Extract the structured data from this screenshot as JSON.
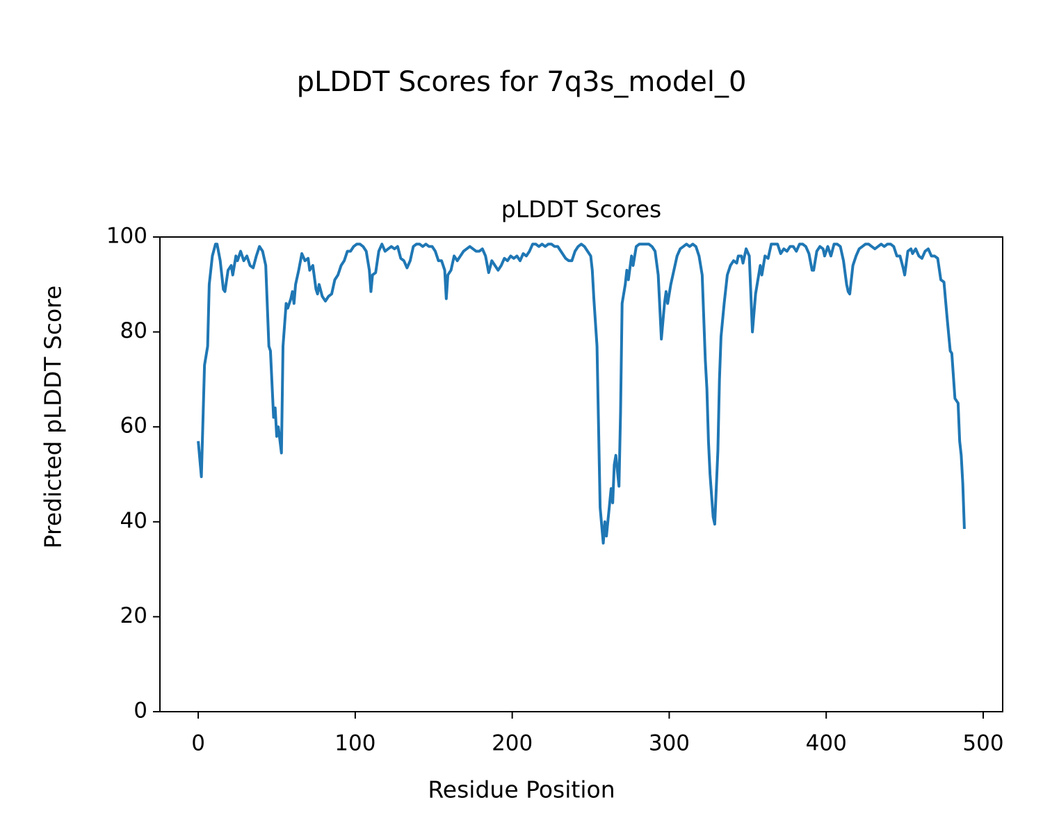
{
  "chart_data": {
    "type": "line",
    "suptitle": "pLDDT Scores for 7q3s_model_0",
    "title": "pLDDT Scores",
    "xlabel": "Residue Position",
    "ylabel": "Predicted pLDDT Score",
    "color": "#1f77b4",
    "xlim": [
      -24.4,
      512.4
    ],
    "ylim": [
      0,
      100
    ],
    "xticks": [
      0,
      100,
      200,
      300,
      400,
      500
    ],
    "yticks": [
      0,
      20,
      40,
      60,
      80,
      100
    ],
    "x": [
      0,
      2,
      4,
      6,
      7,
      9,
      11,
      12,
      14,
      16,
      17,
      19,
      21,
      22,
      24,
      25,
      27,
      29,
      31,
      33,
      35,
      37,
      39,
      41,
      43,
      45,
      46,
      48,
      49,
      50,
      51,
      53,
      54,
      56,
      57,
      59,
      60,
      61,
      62,
      64,
      66,
      68,
      70,
      71,
      73,
      75,
      76,
      77,
      79,
      81,
      83,
      85,
      87,
      89,
      91,
      93,
      95,
      97,
      99,
      101,
      103,
      105,
      107,
      109,
      110,
      111,
      113,
      115,
      117,
      119,
      121,
      123,
      125,
      127,
      129,
      131,
      133,
      135,
      137,
      139,
      141,
      143,
      145,
      147,
      149,
      151,
      153,
      155,
      157,
      158,
      159,
      161,
      163,
      165,
      167,
      169,
      171,
      173,
      175,
      177,
      179,
      181,
      183,
      185,
      187,
      189,
      191,
      193,
      195,
      197,
      199,
      201,
      203,
      205,
      207,
      209,
      211,
      213,
      215,
      217,
      219,
      221,
      223,
      225,
      227,
      229,
      231,
      234,
      236,
      238,
      240,
      242,
      244,
      246,
      248,
      250,
      251,
      252,
      254,
      256,
      258,
      259,
      260,
      263,
      264,
      265,
      266,
      268,
      269,
      270,
      272,
      273,
      274,
      276,
      277,
      279,
      281,
      283,
      285,
      287,
      289,
      291,
      293,
      295,
      297,
      298,
      299,
      301,
      303,
      305,
      307,
      309,
      311,
      313,
      315,
      317,
      319,
      321,
      323,
      324,
      325,
      326,
      328,
      329,
      331,
      332,
      333,
      335,
      337,
      339,
      341,
      343,
      344,
      346,
      347,
      349,
      351,
      353,
      355,
      357,
      358,
      359,
      361,
      363,
      365,
      367,
      369,
      371,
      373,
      375,
      377,
      379,
      381,
      383,
      385,
      387,
      389,
      391,
      392,
      394,
      396,
      398,
      399,
      401,
      403,
      405,
      407,
      409,
      411,
      413,
      414,
      415,
      417,
      419,
      421,
      423,
      425,
      427,
      429,
      431,
      433,
      435,
      437,
      439,
      441,
      443,
      445,
      447,
      449,
      450,
      452,
      454,
      455,
      457,
      459,
      461,
      463,
      465,
      467,
      469,
      471,
      473,
      475,
      477,
      479,
      480,
      482,
      484,
      485,
      486,
      487,
      488
    ],
    "values": [
      57,
      49.5,
      73,
      77,
      90,
      96,
      98.5,
      98.5,
      95,
      89,
      88.5,
      93,
      94,
      92,
      96,
      95,
      97,
      95,
      96,
      94,
      93.5,
      96,
      98,
      97,
      94,
      77,
      76,
      62,
      64,
      58,
      60,
      54.5,
      77,
      86,
      85,
      87,
      88.5,
      86,
      90,
      93,
      96.5,
      95,
      95.5,
      93,
      94,
      89,
      88,
      90,
      87.5,
      86.5,
      87.5,
      88,
      91,
      92,
      94,
      95,
      97,
      97,
      98,
      98.5,
      98.5,
      98,
      97,
      93,
      88.5,
      92,
      92.5,
      97,
      98.5,
      97,
      97.5,
      98,
      97.5,
      98,
      95.5,
      95,
      93.5,
      95,
      98,
      98.5,
      98.5,
      98,
      98.5,
      98,
      98,
      97,
      95,
      95,
      93,
      87,
      92,
      93,
      96,
      95,
      96,
      97,
      97.5,
      98,
      97.5,
      97,
      97,
      97.5,
      96,
      92.5,
      95,
      94,
      93,
      94,
      95.5,
      95,
      96,
      95.5,
      96,
      95,
      96.5,
      96,
      97,
      98.5,
      98.5,
      98,
      98.5,
      98,
      98.5,
      98.5,
      98,
      98,
      97,
      95.5,
      95,
      95,
      97,
      98,
      98.5,
      98,
      97,
      96,
      93,
      87,
      77,
      43,
      35.5,
      40,
      37,
      47,
      44,
      52,
      54,
      47.5,
      63,
      86,
      90,
      93,
      91,
      96,
      94,
      98,
      98.5,
      98.5,
      98.5,
      98.5,
      98,
      97,
      92,
      78.5,
      86,
      88.5,
      86,
      90,
      93,
      96,
      97.5,
      98,
      98.5,
      98,
      98.5,
      98,
      96,
      92,
      74,
      68,
      57,
      50,
      41,
      39.5,
      55,
      70,
      79,
      86,
      92,
      94,
      95,
      94.5,
      96,
      96,
      94.5,
      97.5,
      96,
      80,
      88,
      92,
      94,
      92,
      96,
      95.5,
      98.5,
      98.5,
      98.5,
      96.5,
      97.5,
      97,
      98,
      98,
      97,
      98.5,
      98.5,
      98,
      96.5,
      93,
      93,
      97,
      98,
      97.5,
      96,
      98,
      96,
      98.5,
      98.5,
      98,
      95,
      90,
      88.5,
      88,
      94,
      96,
      97.5,
      98,
      98.5,
      98.5,
      98,
      97.5,
      98,
      98.5,
      98,
      98.5,
      98.5,
      98,
      96,
      96,
      93.5,
      92,
      97,
      97.5,
      96.5,
      97.5,
      96,
      95.5,
      97,
      97.5,
      96,
      96,
      95.5,
      91,
      90.5,
      83,
      76,
      75.5,
      66,
      65,
      57,
      54,
      48,
      38.5
    ]
  }
}
